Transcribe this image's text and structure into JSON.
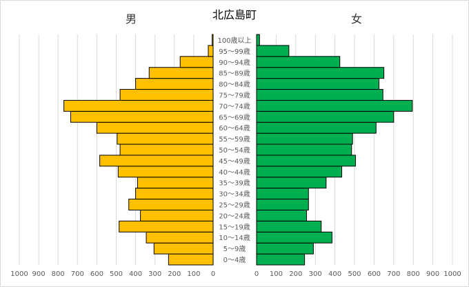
{
  "chart_data": {
    "type": "bar",
    "title": "北広島町",
    "left_label": "男",
    "right_label": "女",
    "categories": [
      "0～4歳",
      "5～9歳",
      "10～14歳",
      "15～19歳",
      "20～24歳",
      "25～29歳",
      "30～34歳",
      "35～39歳",
      "40～44歳",
      "45～49歳",
      "50～54歳",
      "55～59歳",
      "60～64歳",
      "65～69歳",
      "70～74歳",
      "75～79歳",
      "80～84歳",
      "85～89歳",
      "90～94歳",
      "95～99歳",
      "100歳以上"
    ],
    "series": [
      {
        "name": "男",
        "color": "#FFC000",
        "values": [
          230,
          305,
          345,
          485,
          375,
          435,
          400,
          390,
          490,
          585,
          480,
          495,
          600,
          735,
          770,
          480,
          400,
          330,
          170,
          25,
          5
        ]
      },
      {
        "name": "女",
        "color": "#00B050",
        "values": [
          245,
          290,
          385,
          330,
          255,
          265,
          265,
          355,
          435,
          505,
          485,
          490,
          610,
          700,
          795,
          645,
          625,
          650,
          425,
          165,
          15
        ]
      }
    ],
    "xlim": [
      0,
      1000
    ],
    "xticks": [
      "1000",
      "900",
      "800",
      "700",
      "600",
      "500",
      "400",
      "300",
      "200",
      "100",
      "0"
    ],
    "xticks_right": [
      "0",
      "100",
      "200",
      "300",
      "400",
      "500",
      "600",
      "700",
      "800",
      "900",
      "1000"
    ],
    "grid": true,
    "legend": "none"
  }
}
